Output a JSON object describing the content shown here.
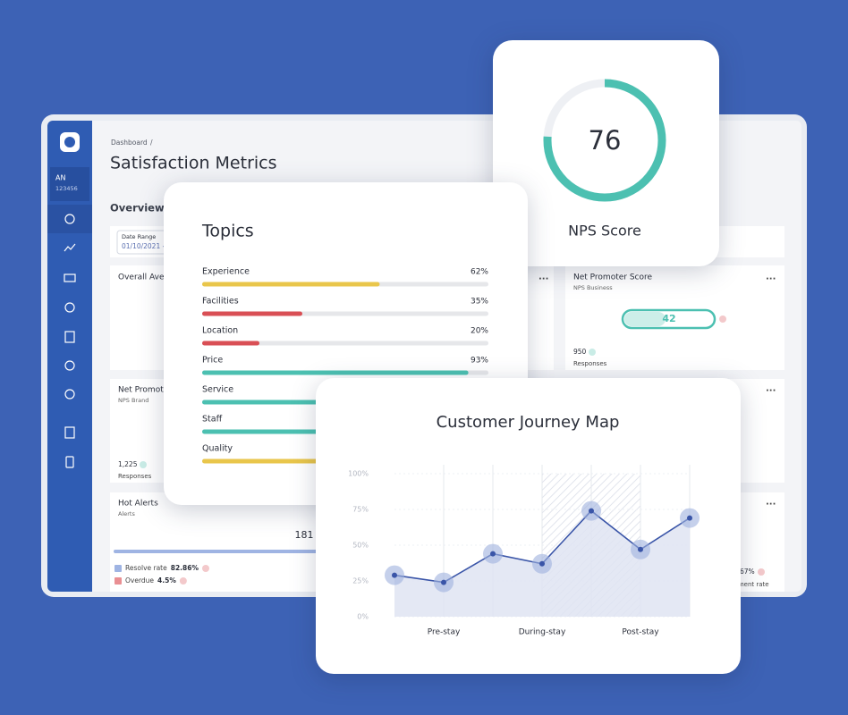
{
  "sidebar": {
    "initials": "AN",
    "user_id": "123456"
  },
  "header": {
    "breadcrumb": "Dashboard",
    "breadcrumb_separator": "/",
    "title": "Satisfaction Metrics",
    "section": "Overview"
  },
  "filters": {
    "date_range_label": "Date Range",
    "date_range_value": "01/10/2021 -"
  },
  "cards": {
    "overall": {
      "title": "Overall Ave"
    },
    "nps_business": {
      "title": "Net Promoter Score",
      "subtitle": "NPS Business",
      "score": "42",
      "count": "950",
      "count_label": "Responses"
    },
    "nps_brand": {
      "title": "Net Promot",
      "subtitle": "NPS Brand",
      "count": "1,225",
      "count_label": "Responses"
    },
    "hot_alerts": {
      "title": "Hot Alerts",
      "subtitle": "Alerts",
      "total": "181",
      "legend": [
        {
          "label": "Resolve rate",
          "value": "82.86%",
          "color": "#9fb4e3"
        },
        {
          "label": "Overdue",
          "value": "4.5%",
          "color": "#e98f93"
        }
      ]
    },
    "comments": {
      "value": "67%",
      "label": "mment rate"
    }
  },
  "topics": {
    "title": "Topics",
    "items": [
      {
        "name": "Experience",
        "value": 62,
        "value_label": "62%",
        "color": "#e9c64b"
      },
      {
        "name": "Facilities",
        "value": 35,
        "value_label": "35%",
        "color": "#d94f55"
      },
      {
        "name": "Location",
        "value": 20,
        "value_label": "20%",
        "color": "#d94f55"
      },
      {
        "name": "Price",
        "value": 93,
        "value_label": "93%",
        "color": "#4cc0b1"
      },
      {
        "name": "Service",
        "value": null,
        "color": "#4cc0b1"
      },
      {
        "name": "Staff",
        "value": null,
        "color": "#4cc0b1"
      },
      {
        "name": "Quality",
        "value": null,
        "color": "#e9c64b"
      }
    ]
  },
  "nps": {
    "value": 76,
    "label": "NPS Score",
    "range": [
      0,
      100
    ],
    "color": "#4cc0b1"
  },
  "chart_data": {
    "type": "line",
    "title": "Customer Journey Map",
    "categories": [
      null,
      "Pre-stay",
      null,
      "During-stay",
      null,
      "Post-stay",
      null
    ],
    "values": [
      29,
      24,
      44,
      37,
      74,
      47,
      69
    ],
    "color": "#3a55a8",
    "ylim": [
      0,
      100
    ],
    "yticks": [
      {
        "value": 0,
        "label": "0%"
      },
      {
        "value": 25,
        "label": "25%"
      },
      {
        "value": 50,
        "label": "50%"
      },
      {
        "value": 75,
        "label": "75%"
      },
      {
        "value": 100,
        "label": "100%"
      }
    ]
  }
}
